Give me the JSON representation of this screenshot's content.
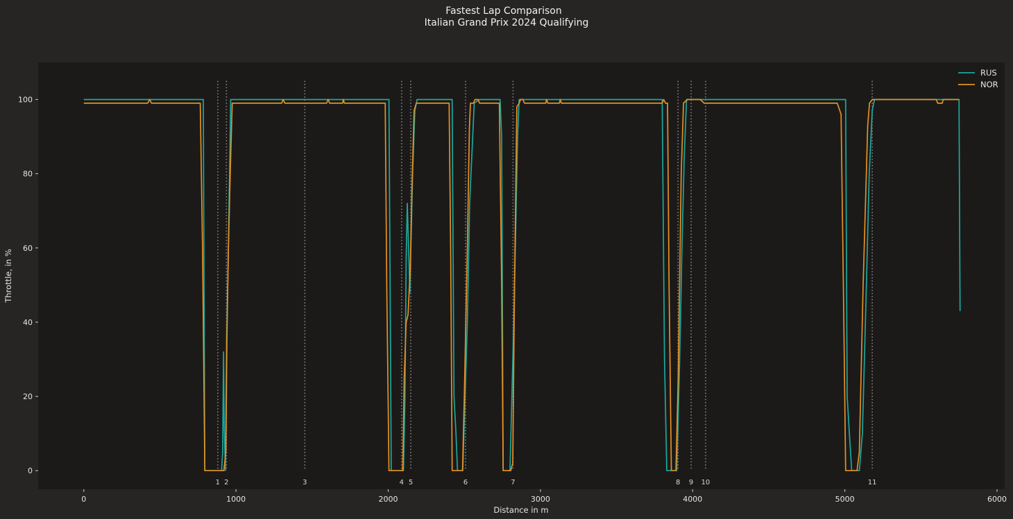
{
  "chart_data": {
    "type": "line",
    "title": "Fastest Lap Comparison",
    "subtitle": "Italian Grand Prix 2024 Qualifying",
    "xlabel": "Distance in m",
    "ylabel": "Throttle, in %",
    "xlim": [
      -300,
      6050
    ],
    "ylim": [
      -5,
      110
    ],
    "x_ticks": [
      0,
      1000,
      2000,
      3000,
      4000,
      5000,
      6000
    ],
    "y_ticks": [
      0,
      20,
      40,
      60,
      80,
      100
    ],
    "grid": false,
    "legend_position": "top-right",
    "corners": [
      {
        "number": "1",
        "distance": 880
      },
      {
        "number": "2",
        "distance": 937
      },
      {
        "number": "3",
        "distance": 1452
      },
      {
        "number": "4",
        "distance": 2088
      },
      {
        "number": "5",
        "distance": 2148
      },
      {
        "number": "6",
        "distance": 2508
      },
      {
        "number": "7",
        "distance": 2820
      },
      {
        "number": "8",
        "distance": 3904
      },
      {
        "number": "9",
        "distance": 3990
      },
      {
        "number": "10",
        "distance": 4085
      },
      {
        "number": "11",
        "distance": 5180
      }
    ],
    "series": [
      {
        "name": "RUS",
        "color": "#1ba99d",
        "points": [
          [
            0,
            100
          ],
          [
            775,
            100
          ],
          [
            785,
            100
          ],
          [
            795,
            0
          ],
          [
            905,
            0
          ],
          [
            912,
            5
          ],
          [
            918,
            32
          ],
          [
            922,
            12
          ],
          [
            930,
            0
          ],
          [
            938,
            35
          ],
          [
            950,
            60
          ],
          [
            965,
            100
          ],
          [
            1500,
            100
          ],
          [
            2000,
            100
          ],
          [
            2005,
            100
          ],
          [
            2020,
            0
          ],
          [
            2100,
            0
          ],
          [
            2110,
            20
          ],
          [
            2118,
            57
          ],
          [
            2125,
            72
          ],
          [
            2135,
            58
          ],
          [
            2142,
            48
          ],
          [
            2160,
            80
          ],
          [
            2175,
            97
          ],
          [
            2190,
            100
          ],
          [
            2420,
            100
          ],
          [
            2432,
            20
          ],
          [
            2445,
            10
          ],
          [
            2455,
            0
          ],
          [
            2490,
            0
          ],
          [
            2520,
            40
          ],
          [
            2535,
            72
          ],
          [
            2555,
            90
          ],
          [
            2565,
            99
          ],
          [
            2600,
            100
          ],
          [
            2735,
            100
          ],
          [
            2745,
            90
          ],
          [
            2755,
            0
          ],
          [
            2800,
            0
          ],
          [
            2825,
            40
          ],
          [
            2840,
            70
          ],
          [
            2850,
            90
          ],
          [
            2860,
            100
          ],
          [
            3790,
            100
          ],
          [
            3800,
            100
          ],
          [
            3815,
            30
          ],
          [
            3830,
            0
          ],
          [
            3895,
            0
          ],
          [
            3915,
            30
          ],
          [
            3930,
            60
          ],
          [
            3945,
            85
          ],
          [
            3960,
            100
          ],
          [
            4500,
            100
          ],
          [
            5000,
            100
          ],
          [
            5005,
            100
          ],
          [
            5015,
            20
          ],
          [
            5030,
            10
          ],
          [
            5045,
            0
          ],
          [
            5095,
            0
          ],
          [
            5115,
            10
          ],
          [
            5135,
            40
          ],
          [
            5160,
            80
          ],
          [
            5180,
            97
          ],
          [
            5195,
            100
          ],
          [
            5500,
            100
          ],
          [
            5750,
            100
          ],
          [
            5757,
            43
          ]
        ]
      },
      {
        "name": "NOR",
        "color": "#e69124",
        "points": [
          [
            0,
            99
          ],
          [
            420,
            99
          ],
          [
            432,
            100
          ],
          [
            445,
            99
          ],
          [
            765,
            99
          ],
          [
            780,
            60
          ],
          [
            795,
            0
          ],
          [
            920,
            0
          ],
          [
            933,
            5
          ],
          [
            940,
            35
          ],
          [
            950,
            60
          ],
          [
            962,
            80
          ],
          [
            975,
            99
          ],
          [
            1300,
            99
          ],
          [
            1310,
            100
          ],
          [
            1320,
            99
          ],
          [
            1595,
            99
          ],
          [
            1605,
            100
          ],
          [
            1615,
            99
          ],
          [
            1700,
            99
          ],
          [
            1705,
            100
          ],
          [
            1712,
            99
          ],
          [
            1980,
            99
          ],
          [
            1990,
            50
          ],
          [
            2005,
            0
          ],
          [
            2095,
            0
          ],
          [
            2105,
            25
          ],
          [
            2118,
            40
          ],
          [
            2130,
            42
          ],
          [
            2145,
            55
          ],
          [
            2155,
            75
          ],
          [
            2170,
            97
          ],
          [
            2185,
            99
          ],
          [
            2400,
            99
          ],
          [
            2410,
            60
          ],
          [
            2420,
            0
          ],
          [
            2488,
            0
          ],
          [
            2500,
            20
          ],
          [
            2520,
            60
          ],
          [
            2533,
            92
          ],
          [
            2540,
            99
          ],
          [
            2560,
            99
          ],
          [
            2570,
            100
          ],
          [
            2590,
            100
          ],
          [
            2600,
            99
          ],
          [
            2730,
            99
          ],
          [
            2745,
            50
          ],
          [
            2755,
            0
          ],
          [
            2805,
            0
          ],
          [
            2818,
            2
          ],
          [
            2830,
            50
          ],
          [
            2845,
            98
          ],
          [
            2860,
            99
          ],
          [
            2870,
            100
          ],
          [
            2885,
            100
          ],
          [
            2895,
            99
          ],
          [
            3035,
            99
          ],
          [
            3040,
            100
          ],
          [
            3048,
            99
          ],
          [
            3125,
            99
          ],
          [
            3130,
            100
          ],
          [
            3138,
            99
          ],
          [
            3800,
            99
          ],
          [
            3810,
            100
          ],
          [
            3822,
            99
          ],
          [
            3835,
            99
          ],
          [
            3845,
            50
          ],
          [
            3860,
            0
          ],
          [
            3890,
            0
          ],
          [
            3905,
            25
          ],
          [
            3925,
            80
          ],
          [
            3940,
            99
          ],
          [
            3965,
            100
          ],
          [
            4050,
            100
          ],
          [
            4075,
            99
          ],
          [
            4950,
            99
          ],
          [
            4975,
            96
          ],
          [
            4990,
            50
          ],
          [
            5005,
            0
          ],
          [
            5080,
            0
          ],
          [
            5095,
            5
          ],
          [
            5120,
            50
          ],
          [
            5150,
            93
          ],
          [
            5162,
            99
          ],
          [
            5180,
            100
          ],
          [
            5600,
            100
          ],
          [
            5610,
            99
          ],
          [
            5640,
            99
          ],
          [
            5645,
            100
          ],
          [
            5750,
            100
          ]
        ]
      }
    ]
  }
}
